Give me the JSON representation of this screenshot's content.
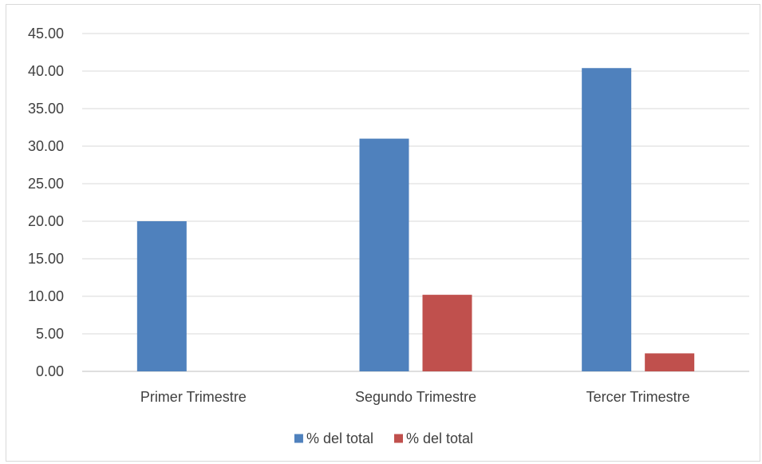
{
  "chart_data": {
    "type": "bar",
    "categories": [
      "Primer Trimestre",
      "Segundo Trimestre",
      "Tercer Trimestre"
    ],
    "series": [
      {
        "name": "% del total",
        "color": "#4f81bd",
        "values": [
          20.0,
          31.0,
          40.4
        ]
      },
      {
        "name": "% del total",
        "color": "#c0504d",
        "values": [
          0,
          10.2,
          2.4
        ]
      }
    ],
    "ylim": [
      0,
      45
    ],
    "ytick_step": 5,
    "ytick_labels": [
      "0.00",
      "5.00",
      "10.00",
      "15.00",
      "20.00",
      "25.00",
      "30.00",
      "35.00",
      "40.00",
      "45.00"
    ],
    "grid": true,
    "legend_position": "bottom",
    "title": "",
    "xlabel": "",
    "ylabel": ""
  }
}
